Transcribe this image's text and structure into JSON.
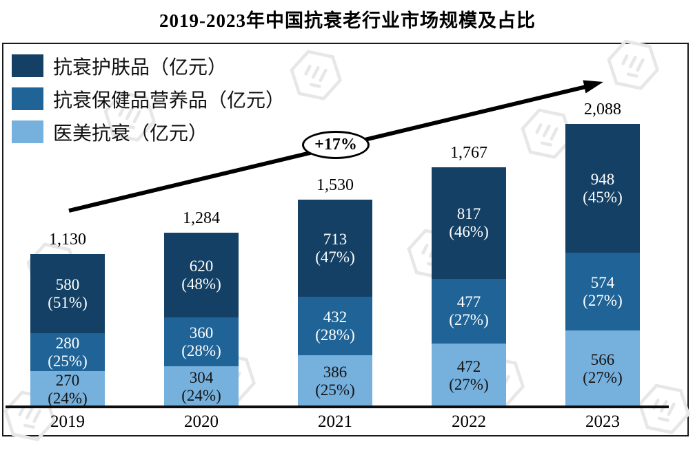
{
  "title": "2019-2023年中国抗衰老行业市场规模及占比",
  "growth_label": "+17%",
  "legend": [
    {
      "label": "抗衰护肤品（亿元）",
      "color": "#134064"
    },
    {
      "label": "抗衰保健品营养品（亿元）",
      "color": "#1F6397"
    },
    {
      "label": "医美抗衰（亿元）",
      "color": "#76B0DD"
    }
  ],
  "chart_data": {
    "type": "bar",
    "stacked": true,
    "title": "2019-2023年中国抗衰老行业市场规模及占比",
    "unit": "亿元",
    "categories": [
      "2019",
      "2020",
      "2021",
      "2022",
      "2023"
    ],
    "series": [
      {
        "name": "抗衰护肤品（亿元）",
        "color": "#134064",
        "values": [
          580,
          620,
          713,
          817,
          948
        ],
        "percents": [
          "51%",
          "48%",
          "47%",
          "46%",
          "45%"
        ]
      },
      {
        "name": "抗衰保健品营养品（亿元）",
        "color": "#1F6397",
        "values": [
          280,
          360,
          432,
          477,
          574
        ],
        "percents": [
          "25%",
          "28%",
          "28%",
          "27%",
          "27%"
        ]
      },
      {
        "name": "医美抗衰（亿元）",
        "color": "#76B0DD",
        "values": [
          270,
          304,
          386,
          472,
          566
        ],
        "percents": [
          "24%",
          "24%",
          "25%",
          "27%",
          "27%"
        ]
      }
    ],
    "totals": [
      "1,130",
      "1,284",
      "1,530",
      "1,767",
      "2,088"
    ],
    "annotation": "+17%",
    "legend_position": "top-left",
    "grid": false,
    "ylim": [
      0,
      2088
    ]
  }
}
